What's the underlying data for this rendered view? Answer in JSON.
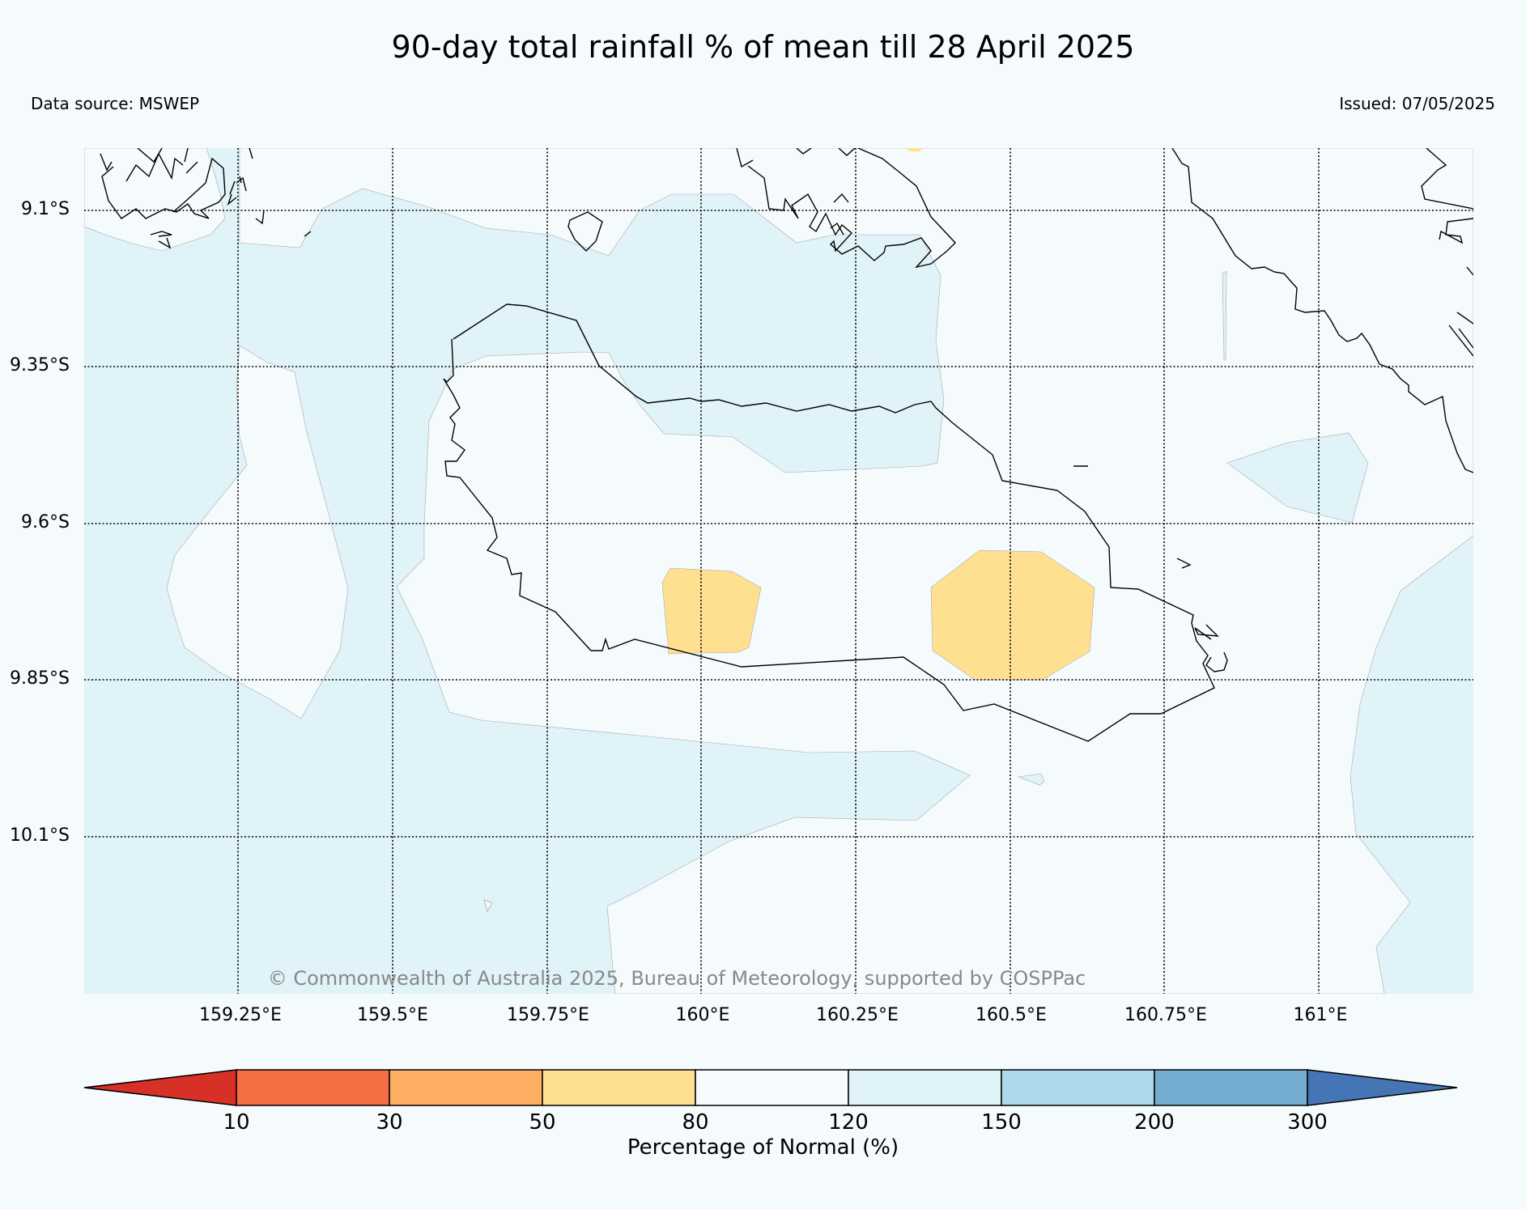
{
  "header": {
    "title": "90-day total rainfall % of mean till 28 April 2025",
    "data_source": "Data source: MSWEP",
    "issued": "Issued: 07/05/2025"
  },
  "map": {
    "latitude_labels": [
      "9.1°S",
      "9.35°S",
      "9.6°S",
      "9.85°S",
      "10.1°S"
    ],
    "longitude_labels": [
      "159.25°E",
      "159.5°E",
      "159.75°E",
      "160°E",
      "160.25°E",
      "160.5°E",
      "160.75°E",
      "161°E"
    ],
    "copyright": "© Commonwealth of Australia 2025, Bureau of Meteorology, supported by COSPPac",
    "category_colors": {
      "80-120": "#f5fbfd",
      "120-150": "#e0f3f8",
      "50-80": "#fee090"
    }
  },
  "colorbar": {
    "title": "Percentage of Normal (%)",
    "ticks": [
      "10",
      "30",
      "50",
      "80",
      "120",
      "150",
      "200",
      "300"
    ],
    "colors": [
      "#d73027",
      "#f46d43",
      "#fdae61",
      "#fee090",
      "#f5fbfd",
      "#e0f3f8",
      "#abd9e9",
      "#74add1",
      "#4575b4"
    ]
  }
}
